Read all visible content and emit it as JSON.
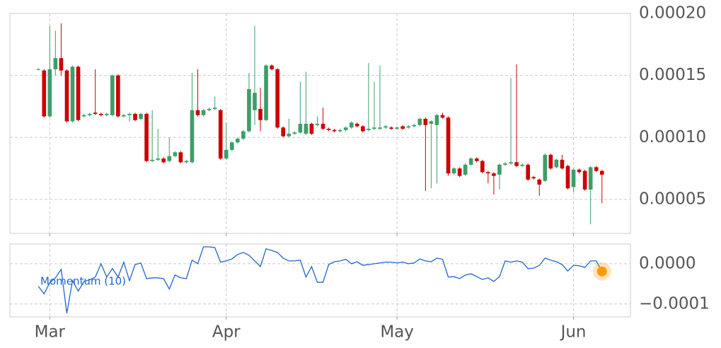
{
  "chart_data": [
    {
      "type": "candlestick",
      "xlim": [
        -5,
        104
      ],
      "xticks": [
        {
          "value": 2,
          "label": "Mar"
        },
        {
          "value": 33,
          "label": "Apr"
        },
        {
          "value": 63,
          "label": "May"
        },
        {
          "value": 94,
          "label": "Jun"
        }
      ],
      "ylim": [
        2.26e-05,
        0.0002
      ],
      "yticks": [
        {
          "value": 5e-05,
          "label": "0.00005"
        },
        {
          "value": 0.0001,
          "label": "0.00010"
        },
        {
          "value": 0.00015,
          "label": "0.00015"
        },
        {
          "value": 0.0002,
          "label": "0.00020"
        }
      ],
      "grid": true,
      "up_color": "#3d9e6a",
      "down_color": "#cc0000",
      "open": [
        0.000155,
        0.000154,
        0.000117,
        0.000155,
        0.000164,
        0.000154,
        0.000113,
        0.000157,
        0.000117,
        0.000118,
        0.00012,
        0.000119,
        0.000118,
        0.000118,
        0.00015,
        0.000117,
        0.000118,
        0.000119,
        0.000115,
        0.000119,
        8.1e-05,
        8.2e-05,
        8.3e-05,
        8.1e-05,
        8.5e-05,
        8.8e-05,
        8e-05,
        8e-05,
        0.000122,
        0.000118,
        0.000122,
        0.000123,
        0.000122,
        8.3e-05,
        9e-05,
        9.6e-05,
        9.9e-05,
        0.000105,
        0.000122,
        0.000123,
        0.000114,
        0.000158,
        0.000155,
        0.000108,
        0.000101,
        0.000103,
        0.000104,
        0.000103,
        0.000111,
        0.00011,
        0.000111,
        0.000107,
        0.000106,
        0.000105,
        0.000106,
        0.000108,
        0.000111,
        0.000109,
        0.000106,
        0.000107,
        0.000107,
        0.000108,
        0.000108,
        0.000107,
        0.000109,
        0.000108,
        0.000109,
        0.00011,
        0.000115,
        0.000111,
        0.00011,
        0.000118,
        0.000116,
        7.1e-05,
        7.5e-05,
        7e-05,
        7.8e-05,
        8.3e-05,
        8.1e-05,
        7.2e-05,
        7.1e-05,
        7e-05,
        7.8e-05,
        7.9e-05,
        8e-05,
        7.7e-05,
        7.8e-05,
        6.8e-05,
        6.6e-05,
        6.5e-05,
        8.6e-05,
        7.6e-05,
        8.2e-05,
        7.7e-05,
        6e-05,
        7.4e-05,
        7.3e-05,
        5.8e-05,
        7.6e-05,
        7.3e-05
      ],
      "high": [
        0.000156,
        0.000155,
        0.00019,
        0.000186,
        0.000192,
        0.000155,
        0.000158,
        0.000158,
        0.000119,
        0.00012,
        0.000155,
        0.00012,
        0.00012,
        0.000151,
        0.000151,
        0.000119,
        0.00012,
        0.00012,
        0.00012,
        0.00012,
        0.000122,
        0.000107,
        8.4e-05,
        0.0001,
        8.9e-05,
        8.9e-05,
        8.2e-05,
        0.000152,
        0.000155,
        0.000123,
        0.000124,
        0.000133,
        0.000123,
        0.000112,
        9.7e-05,
        0.0001,
        0.000106,
        0.000152,
        0.00019,
        0.00014,
        0.000159,
        0.000159,
        0.000156,
        0.000109,
        0.000115,
        0.000105,
        0.000145,
        0.000153,
        0.000112,
        0.000117,
        0.000124,
        0.000108,
        0.000107,
        0.000107,
        0.000109,
        0.000113,
        0.000112,
        0.00011,
        0.00016,
        0.000145,
        0.000158,
        0.00011,
        0.000109,
        0.000109,
        0.00011,
        0.00011,
        0.000111,
        0.000116,
        0.000116,
        0.000114,
        0.000119,
        0.00012,
        0.000117,
        7.6e-05,
        7.6e-05,
        7.9e-05,
        8.4e-05,
        8.4e-05,
        8.2e-05,
        7.3e-05,
        7.2e-05,
        7.9e-05,
        8e-05,
        0.000148,
        0.000159,
        7.9e-05,
        7.9e-05,
        6.9e-05,
        6.7e-05,
        8.7e-05,
        8.7e-05,
        8.3e-05,
        8.6e-05,
        7.8e-05,
        7.5e-05,
        7.5e-05,
        7.4e-05,
        7.7e-05,
        7.7e-05,
        7.4e-05
      ],
      "low": [
        0.000154,
        0.000116,
        0.000116,
        0.00015,
        0.00015,
        0.000112,
        0.000112,
        0.000113,
        0.000116,
        0.000117,
        0.000118,
        0.000117,
        0.000117,
        0.000117,
        0.000116,
        0.000116,
        0.000113,
        0.000113,
        0.000114,
        8e-05,
        8e-05,
        8.1e-05,
        7.9e-05,
        8e-05,
        8.4e-05,
        7.9e-05,
        7.9e-05,
        7.9e-05,
        0.000117,
        0.000117,
        0.000121,
        0.000122,
        8.2e-05,
        8.2e-05,
        8.9e-05,
        9.5e-05,
        9.8e-05,
        0.000104,
        0.00011,
        0.000105,
        0.000113,
        0.000154,
        0.000107,
        0.0001,
        0.0001,
        0.000102,
        0.000103,
        0.000102,
        0.000102,
        0.000109,
        0.000106,
        0.000105,
        0.000104,
        0.000104,
        0.000105,
        0.000107,
        0.000108,
        0.000104,
        0.000105,
        0.000106,
        0.000106,
        0.000107,
        0.000106,
        0.000106,
        0.000106,
        0.000107,
        0.000108,
        0.000109,
        5.7e-05,
        5.9e-05,
        6.3e-05,
        0.000115,
        6.9e-05,
        7e-05,
        6.8e-05,
        6.9e-05,
        7.7e-05,
        8e-05,
        7.1e-05,
        6.3e-05,
        5.4e-05,
        5.8e-05,
        7.7e-05,
        7.8e-05,
        7.6e-05,
        7.6e-05,
        6.5e-05,
        6.6e-05,
        5.3e-05,
        6.4e-05,
        7.4e-05,
        7.5e-05,
        7.4e-05,
        5.8e-05,
        5.6e-05,
        7.1e-05,
        5.7e-05,
        3e-05,
        7.2e-05,
        4.7e-05
      ],
      "close": [
        0.000155,
        0.000117,
        0.000155,
        0.000164,
        0.000154,
        0.000113,
        0.000157,
        0.000114,
        0.000118,
        0.000119,
        0.000119,
        0.000118,
        0.000119,
        0.00015,
        0.000117,
        0.000118,
        0.000119,
        0.000114,
        0.000119,
        8.1e-05,
        8.2e-05,
        8.3e-05,
        8e-05,
        8.5e-05,
        8.8e-05,
        8e-05,
        8.1e-05,
        0.000122,
        0.000118,
        0.000122,
        0.000123,
        0.000124,
        8.3e-05,
        9e-05,
        9.6e-05,
        9.9e-05,
        0.000105,
        0.000139,
        0.000136,
        0.000114,
        0.000158,
        0.000155,
        0.000108,
        0.000101,
        0.000103,
        0.000104,
        0.000111,
        0.000111,
        0.000103,
        0.000111,
        0.000107,
        0.000106,
        0.000105,
        0.000106,
        0.000108,
        0.000112,
        0.000109,
        0.000105,
        0.000107,
        0.000108,
        0.000108,
        0.000109,
        0.000107,
        0.000108,
        0.000107,
        0.000109,
        0.00011,
        0.000115,
        0.00011,
        0.000113,
        0.000118,
        0.000116,
        7.1e-05,
        7.5e-05,
        6.9e-05,
        7.8e-05,
        8.3e-05,
        8.1e-05,
        7.2e-05,
        7.1e-05,
        6.9e-05,
        7.8e-05,
        7.9e-05,
        8e-05,
        7.7e-05,
        7.8e-05,
        6.6e-05,
        6.7e-05,
        6.2e-05,
        8.6e-05,
        7.5e-05,
        8.2e-05,
        7.5e-05,
        5.9e-05,
        7.4e-05,
        7.2e-05,
        5.8e-05,
        7.6e-05,
        7.3e-05,
        7e-05
      ]
    },
    {
      "type": "line",
      "ylim": [
        -0.000132,
        4.9e-05
      ],
      "yticks": [
        {
          "value": -0.0001,
          "label": "−0.0001"
        },
        {
          "value": 0,
          "label": "0.0000"
        }
      ],
      "grid": true,
      "highlight_color": "#ff9900",
      "series": [
        {
          "name": "Momentum (10)",
          "color": "#2266cc",
          "values": [
            -5.6e-05,
            -7.5e-05,
            -4.7e-05,
            -3.5e-05,
            -1.4e-05,
            -0.000123,
            -4.2e-05,
            -6.8e-05,
            -4.4e-05,
            -4e-05,
            -3.3e-05,
            0,
            -3.3e-05,
            -1.2e-05,
            -3.3e-05,
            4e-06,
            -4.2e-05,
            -2e-06,
            2e-06,
            -3.7e-05,
            -3.5e-05,
            -3.5e-05,
            -3.7e-05,
            -6.3e-05,
            -2.8e-05,
            -3.5e-05,
            -3.7e-05,
            9e-06,
            0,
            4.2e-05,
            4.2e-05,
            4e-05,
            4e-06,
            7e-06,
            1.2e-05,
            2.3e-05,
            2.8e-05,
            2.1e-05,
            7e-06,
            -7e-06,
            3.7e-05,
            3.3e-05,
            2.8e-05,
            1.4e-05,
            7e-06,
            7e-06,
            9e-06,
            -3.3e-05,
            -7e-06,
            -4.6e-05,
            -4.6e-05,
            -2e-06,
            5e-06,
            7e-06,
            1.1e-05,
            0,
            5e-06,
            -4e-06,
            -2e-06,
            0,
            2e-06,
            4e-06,
            4e-06,
            2e-06,
            4e-06,
            0,
            2e-06,
            1.2e-05,
            7e-06,
            5e-06,
            1.4e-05,
            1.1e-05,
            -3.3e-05,
            -3.2e-05,
            -3.7e-05,
            -2.8e-05,
            -2.5e-05,
            -3.2e-05,
            -3.9e-05,
            -3.5e-05,
            -4.4e-05,
            -3.2e-05,
            7e-06,
            4e-06,
            7e-06,
            4e-06,
            -1.2e-05,
            -1.1e-05,
            -4e-06,
            1.4e-05,
            9e-06,
            5e-06,
            -2e-06,
            -1.8e-05,
            -4e-06,
            -5e-06,
            -9e-06,
            7e-06,
            7e-06,
            -1.9e-05
          ]
        }
      ]
    }
  ]
}
